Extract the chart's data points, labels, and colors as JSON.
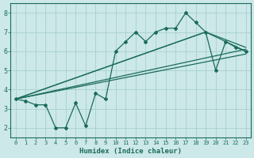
{
  "xlabel": "Humidex (Indice chaleur)",
  "xlim": [
    -0.5,
    23.5
  ],
  "ylim": [
    1.5,
    8.5
  ],
  "xticks": [
    0,
    1,
    2,
    3,
    4,
    5,
    6,
    7,
    8,
    9,
    10,
    11,
    12,
    13,
    14,
    15,
    16,
    17,
    18,
    19,
    20,
    21,
    22,
    23
  ],
  "yticks": [
    2,
    3,
    4,
    5,
    6,
    7,
    8
  ],
  "bg_color": "#cce8e8",
  "grid_color": "#a8d0d0",
  "line_color": "#1a6b5a",
  "main_x": [
    0,
    1,
    2,
    3,
    4,
    5,
    6,
    7,
    8,
    9,
    10,
    11,
    12,
    13,
    14,
    15,
    16,
    17,
    18,
    19,
    20,
    21,
    22,
    23
  ],
  "main_y": [
    3.5,
    3.4,
    3.2,
    3.2,
    2.0,
    2.0,
    3.3,
    2.1,
    3.8,
    3.5,
    6.0,
    6.5,
    7.0,
    6.5,
    7.0,
    7.2,
    7.2,
    8.0,
    7.5,
    7.0,
    5.0,
    6.5,
    6.2,
    6.0
  ],
  "trend1_x": [
    0,
    23
  ],
  "trend1_y": [
    3.5,
    6.1
  ],
  "trend2_x": [
    0,
    23
  ],
  "trend2_y": [
    3.5,
    5.85
  ],
  "trend3_x": [
    0,
    19,
    23
  ],
  "trend3_y": [
    3.5,
    7.0,
    6.2
  ],
  "trend4_x": [
    0,
    19,
    23
  ],
  "trend4_y": [
    3.5,
    7.0,
    6.0
  ]
}
